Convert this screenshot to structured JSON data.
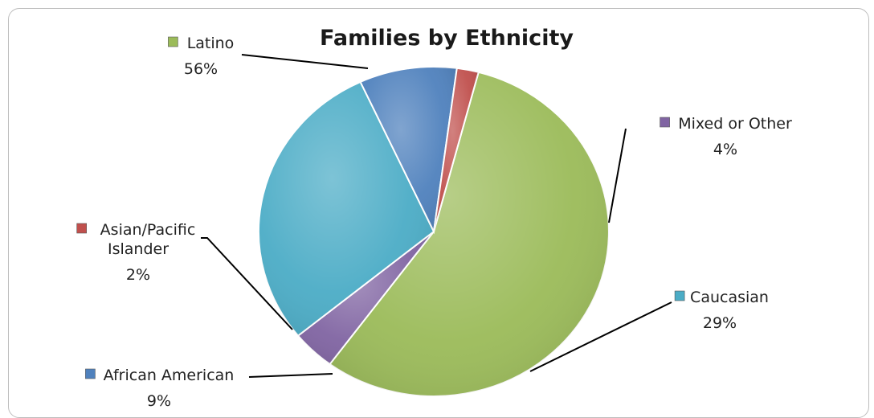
{
  "chart_data": {
    "type": "pie",
    "title": "Families by Ethnicity",
    "slices": [
      {
        "label": "Latino",
        "pct_label": "56%",
        "value": 56,
        "color": "#9BBB59"
      },
      {
        "label": "Mixed or Other",
        "pct_label": "4%",
        "value": 4,
        "color": "#8064A2"
      },
      {
        "label": "Caucasian",
        "pct_label": "29%",
        "value": 29,
        "color": "#4BACC6"
      },
      {
        "label": "African American",
        "pct_label": "9%",
        "value": 9,
        "color": "#4F81BD"
      },
      {
        "label": "Asian/Pacific Islander",
        "label_lines": [
          "Asian/Pacific",
          "Islander"
        ],
        "pct_label": "2%",
        "value": 2,
        "color": "#C0504D"
      }
    ],
    "legend": "none",
    "data_labels": "category-and-percent-with-leader-lines"
  }
}
